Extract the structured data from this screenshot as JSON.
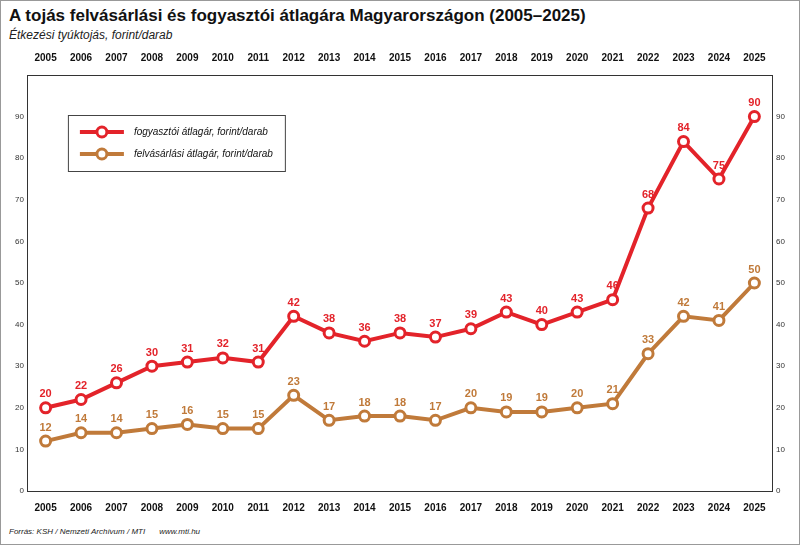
{
  "chart_data": {
    "type": "line",
    "title": "A tojás felvásárlási és fogyasztói átlagára Magyarországon (2005–2025)",
    "subtitle": "Étkezési tyúktojás, forint/darab",
    "categories": [
      "2005",
      "2006",
      "2007",
      "2008",
      "2009",
      "2010",
      "2011",
      "2012",
      "2013",
      "2014",
      "2015",
      "2016",
      "2017",
      "2018",
      "2019",
      "2020",
      "2021",
      "2022",
      "2023",
      "2024",
      "2025"
    ],
    "series": [
      {
        "name": "fogyasztói átlagár, forint/darab",
        "color": "#e3232a",
        "marker": "circle",
        "values": [
          20,
          22,
          26,
          30,
          31,
          32,
          31,
          42,
          38,
          36,
          38,
          37,
          39,
          43,
          40,
          43,
          46,
          68,
          84,
          75,
          90
        ]
      },
      {
        "name": "felvásárlási átlagár, forint/darab",
        "color": "#c07a3a",
        "marker": "circle",
        "values": [
          12,
          14,
          14,
          15,
          16,
          15,
          15,
          23,
          17,
          18,
          18,
          17,
          20,
          19,
          19,
          20,
          21,
          33,
          42,
          41,
          50
        ]
      }
    ],
    "ylim": [
      0,
      100
    ],
    "yticks": [
      0,
      10,
      20,
      30,
      40,
      50,
      60,
      70,
      80,
      90
    ],
    "grid": false,
    "legend": "upper left",
    "data_labels": true,
    "source": "Forrás: KSH / Nemzeti Archívum / MTI",
    "url": "www.mti.hu"
  }
}
